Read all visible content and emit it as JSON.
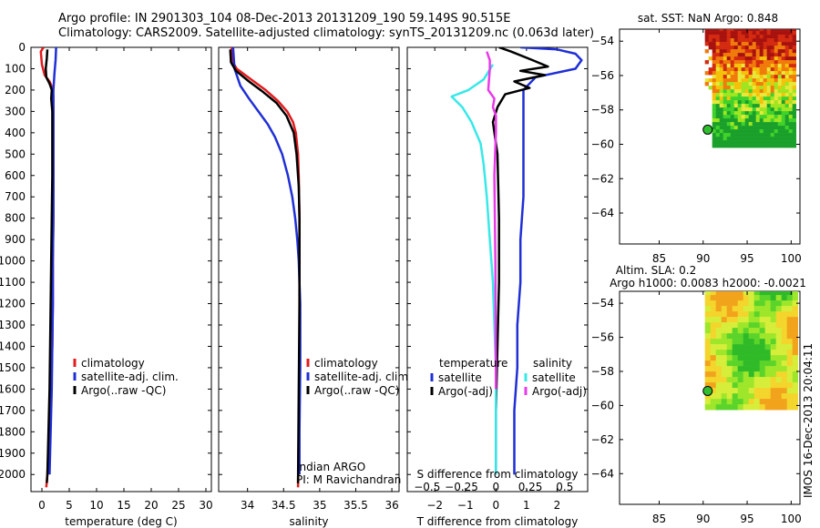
{
  "header": {
    "title_line1": "Argo profile: IN 2901303_104 08-Dec-2013 20131209_190 59.149S 90.515E",
    "title_line2": "Climatology: CARS2009. Satellite-adjusted climatology: synTS_20131209.nc (0.063d later)"
  },
  "colors": {
    "climatology": "#e41a1c",
    "satellite": "#1f2fd6",
    "argo": "#000000",
    "sal_satellite": "#38e8e8",
    "sal_argo": "#e83ae8"
  },
  "chart_data": [
    {
      "type": "line",
      "id": "temperature",
      "xlabel": "temperature (deg C)",
      "xlim": [
        -2,
        31
      ],
      "ylim": [
        2080,
        0
      ],
      "xticks": [
        0,
        5,
        10,
        15,
        20,
        25,
        30
      ],
      "xtick_labels": [
        "0",
        "5",
        "10",
        "15",
        "20",
        "25",
        "30"
      ],
      "yticks": [
        0,
        100,
        200,
        300,
        400,
        500,
        600,
        700,
        800,
        900,
        1000,
        1100,
        1200,
        1300,
        1400,
        1500,
        1600,
        1700,
        1800,
        1900,
        2000
      ],
      "ytick_labels": [
        "0",
        "100",
        "200",
        "300",
        "400",
        "500",
        "600",
        "700",
        "800",
        "900",
        "1000",
        "1100",
        "1200",
        "1300",
        "1400",
        "1500",
        "1600",
        "1700",
        "1800",
        "1900",
        "2000"
      ],
      "legend": [
        "climatology",
        "satellite-adj. clim.",
        "Argo(..raw -QC)"
      ],
      "series": [
        {
          "name": "climatology",
          "color_key": "climatology",
          "x": [
            0.3,
            -0.2,
            0.0,
            0.5,
            1.4,
            1.9,
            2.1,
            2.1,
            2.1,
            2.1,
            2.1,
            2.0,
            2.0,
            1.9,
            1.7,
            1.4,
            1.0,
            0.8
          ],
          "y": [
            0,
            20,
            80,
            130,
            160,
            190,
            230,
            300,
            400,
            600,
            800,
            1000,
            1200,
            1400,
            1600,
            1800,
            2000,
            2060
          ]
        },
        {
          "name": "satellite-adj. clim.",
          "color_key": "satellite",
          "x": [
            2.6,
            2.5,
            2.3,
            2.1,
            2.1,
            2.1,
            2.1,
            2.1,
            2.0,
            2.0,
            1.9,
            1.8,
            1.6,
            1.4
          ],
          "y": [
            0,
            60,
            120,
            200,
            300,
            400,
            600,
            800,
            1000,
            1200,
            1400,
            1600,
            1800,
            2000
          ]
        },
        {
          "name": "Argo(..raw -QC)",
          "color_key": "argo",
          "x": [
            1.0,
            0.9,
            0.7,
            0.8,
            1.4,
            1.8,
            1.7,
            1.9,
            1.9,
            1.9,
            1.8,
            1.7,
            1.6,
            1.5,
            1.4,
            1.2,
            1.0,
            0.9
          ],
          "y": [
            10,
            50,
            100,
            140,
            170,
            200,
            240,
            300,
            400,
            600,
            800,
            1000,
            1200,
            1400,
            1600,
            1800,
            2000,
            2040
          ]
        }
      ]
    },
    {
      "type": "line",
      "id": "salinity",
      "xlabel": "salinity",
      "xlim": [
        33.6,
        36.1
      ],
      "ylim": [
        2080,
        0
      ],
      "xticks": [
        34,
        34.5,
        35,
        35.5,
        36
      ],
      "xtick_labels": [
        "34",
        "34.5",
        "35",
        "35.5",
        "36"
      ],
      "legend": [
        "climatology",
        "satellite-adj. clim.",
        "Argo(..raw -QC)"
      ],
      "annotations": [
        "Indian ARGO",
        "PI: M Ravichandran"
      ],
      "series": [
        {
          "name": "climatology",
          "color_key": "climatology",
          "x": [
            33.78,
            33.78,
            33.85,
            34.05,
            34.25,
            34.42,
            34.55,
            34.63,
            34.67,
            34.7,
            34.71,
            34.72,
            34.72,
            34.72,
            34.71,
            34.7
          ],
          "y": [
            0,
            60,
            100,
            150,
            200,
            250,
            300,
            350,
            400,
            500,
            600,
            800,
            1000,
            1400,
            1800,
            2060
          ]
        },
        {
          "name": "satellite-adj. clim.",
          "color_key": "satellite",
          "x": [
            33.8,
            33.82,
            33.9,
            34.02,
            34.15,
            34.28,
            34.38,
            34.48,
            34.56,
            34.62,
            34.66,
            34.69,
            34.71,
            34.73,
            34.73,
            34.72,
            34.72
          ],
          "y": [
            0,
            100,
            180,
            240,
            300,
            360,
            420,
            500,
            600,
            700,
            800,
            900,
            1000,
            1200,
            1500,
            1800,
            2000
          ]
        },
        {
          "name": "Argo(..raw -QC)",
          "color_key": "argo",
          "x": [
            33.76,
            33.77,
            33.84,
            34.02,
            34.22,
            34.4,
            34.54,
            34.64,
            34.68,
            34.71,
            34.72,
            34.72,
            34.71,
            34.7
          ],
          "y": [
            10,
            70,
            110,
            160,
            210,
            260,
            320,
            400,
            500,
            650,
            800,
            1200,
            1600,
            2040
          ]
        }
      ]
    },
    {
      "type": "line",
      "id": "difference",
      "xlabel": "T difference from climatology",
      "xlim": [
        -2.9,
        3.0
      ],
      "ylim": [
        2080,
        0
      ],
      "xticks": [
        -2,
        -1,
        0,
        1,
        2
      ],
      "xtick_labels": [
        "−2",
        "−1",
        "0",
        "1",
        "2"
      ],
      "top_label": "S difference from climatology",
      "sticks": [
        -0.5,
        -0.25,
        0,
        0.25,
        0.5
      ],
      "stick_labels": [
        "−0.5",
        "−0.25",
        "0",
        "0.25",
        "0.5"
      ],
      "legend_groups": [
        {
          "title": "temperature",
          "items": [
            {
              "label": "satellite",
              "color_key": "satellite"
            },
            {
              "label": "Argo(-adj)",
              "color_key": "argo"
            }
          ]
        },
        {
          "title": "salinity",
          "items": [
            {
              "label": "satellite",
              "color_key": "sal_satellite"
            },
            {
              "label": "Argo(-adj)",
              "color_key": "sal_argo"
            }
          ]
        }
      ],
      "series": [
        {
          "name": "T satellite",
          "color_key": "satellite",
          "x": [
            0.8,
            2.0,
            2.6,
            2.8,
            2.6,
            1.3,
            0.9,
            0.9,
            0.9,
            0.9,
            0.9,
            0.8,
            0.8,
            0.7,
            0.7,
            0.6,
            0.6,
            0.6
          ],
          "y": [
            0,
            10,
            30,
            60,
            100,
            140,
            200,
            260,
            350,
            500,
            700,
            900,
            1100,
            1300,
            1500,
            1700,
            1900,
            2000
          ]
        },
        {
          "name": "T Argo(-adj)",
          "color_key": "argo",
          "x": [
            0.1,
            0.5,
            1.2,
            1.7,
            0.8,
            1.6,
            0.6,
            1.1,
            0.3,
            0.05,
            -0.1,
            0.05,
            0.1,
            0.1,
            0.05,
            0.0,
            0.0
          ],
          "y": [
            0,
            20,
            60,
            90,
            110,
            130,
            160,
            190,
            220,
            280,
            350,
            500,
            800,
            1100,
            1400,
            1700,
            2000
          ]
        },
        {
          "name": "S satellite",
          "color_key": "sal_satellite",
          "x": [
            -0.1,
            -0.4,
            -0.9,
            -1.45,
            -1.1,
            -0.8,
            -0.5,
            -0.4,
            -0.3,
            -0.2,
            -0.1,
            -0.05,
            0.0,
            0.0,
            0.0
          ],
          "y": [
            80,
            150,
            200,
            230,
            280,
            350,
            450,
            550,
            700,
            900,
            1100,
            1300,
            1500,
            1800,
            2000
          ]
        },
        {
          "name": "S Argo(-adj)",
          "color_key": "sal_argo",
          "x": [
            -0.3,
            -0.2,
            -0.2,
            -0.25,
            -0.05,
            -0.1,
            0.0,
            0.0,
            -0.05,
            -0.02,
            0.0
          ],
          "y": [
            20,
            60,
            100,
            200,
            240,
            280,
            320,
            400,
            600,
            1000,
            1600
          ]
        }
      ]
    },
    {
      "type": "heatmap",
      "id": "sst_map",
      "title": "sat. SST: NaN Argo: 0.848",
      "xlim": [
        80.5,
        101
      ],
      "ylim": [
        -65.8,
        -53.3
      ],
      "xticks": [
        85,
        90,
        95,
        100
      ],
      "xtick_labels": [
        "85",
        "90",
        "95",
        "100"
      ],
      "yticks": [
        -54,
        -56,
        -58,
        -60,
        -62,
        -64
      ],
      "ytick_labels": [
        "−54",
        "−56",
        "−58",
        "−60",
        "−62",
        "−64"
      ],
      "data_extent": {
        "lon": [
          90.2,
          100.5
        ],
        "lat": [
          -60.1,
          -53.2
        ]
      },
      "argo_position": {
        "lon": 90.515,
        "lat": -59.149
      }
    },
    {
      "type": "heatmap",
      "id": "sla_map",
      "title": "Altim. SLA: 0.2",
      "subtitle": "Argo h1000: 0.0083 h2000: -0.0021",
      "xlim": [
        80.5,
        101
      ],
      "ylim": [
        -65.8,
        -53.3
      ],
      "xticks": [
        85,
        90,
        95,
        100
      ],
      "xtick_labels": [
        "85",
        "90",
        "95",
        "100"
      ],
      "yticks": [
        -54,
        -56,
        -58,
        -60,
        -62,
        -64
      ],
      "ytick_labels": [
        "−54",
        "−56",
        "−58",
        "−60",
        "−62",
        "−64"
      ],
      "data_extent": {
        "lon": [
          90.2,
          100.5
        ],
        "lat": [
          -60.1,
          -53.2
        ]
      },
      "argo_position": {
        "lon": 90.515,
        "lat": -59.149
      }
    }
  ],
  "footer": {
    "stamp": "IMOS 16-Dec-2013 20:04:11"
  }
}
